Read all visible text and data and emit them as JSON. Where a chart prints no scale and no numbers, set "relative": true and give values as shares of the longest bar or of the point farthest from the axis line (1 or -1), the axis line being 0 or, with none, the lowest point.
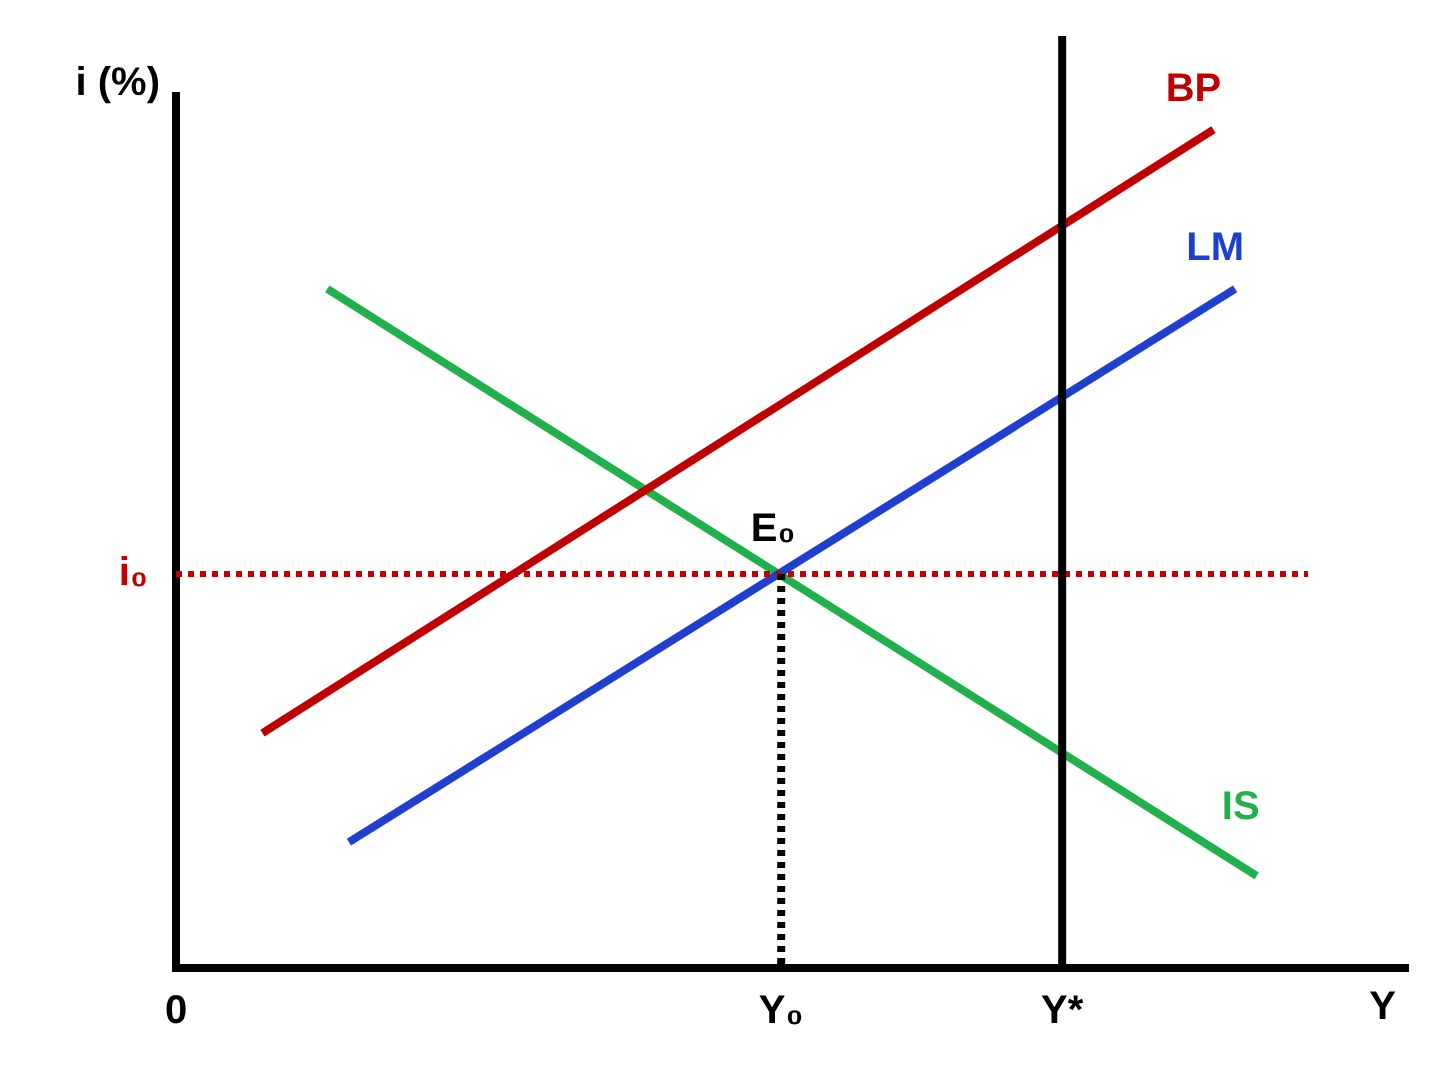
{
  "chart_data": {
    "type": "line",
    "relative": true,
    "ylabel": "i (%)",
    "xlabel": "Y",
    "categories": [
      "0",
      null,
      null,
      null,
      null,
      null,
      null,
      null,
      null,
      null,
      null,
      null,
      null,
      null,
      null,
      null,
      null,
      null,
      null,
      null,
      null,
      null,
      null,
      null,
      null,
      null,
      null,
      null,
      "Y₀",
      null,
      null,
      null,
      null,
      null,
      null,
      null,
      null,
      null,
      null,
      null,
      null,
      "Y*",
      null,
      null,
      null,
      null,
      null,
      null,
      null,
      null,
      null,
      null,
      null,
      null,
      null,
      null,
      null,
      null
    ],
    "series": [
      {
        "name": "BP",
        "color": "#c00000",
        "values": [
          null,
          null,
          null,
          null,
          0.28,
          null,
          null,
          null,
          null,
          null,
          null,
          null,
          null,
          null,
          null,
          null,
          null,
          null,
          null,
          null,
          null,
          null,
          null,
          null,
          null,
          null,
          null,
          null,
          null,
          null,
          null,
          null,
          null,
          null,
          null,
          null,
          null,
          null,
          null,
          null,
          null,
          null,
          null,
          null,
          null,
          null,
          null,
          null,
          1,
          null,
          null,
          null,
          null,
          null,
          null,
          null,
          null,
          null
        ]
      },
      {
        "name": "LM",
        "color": "#1f3fd0",
        "values": [
          null,
          null,
          null,
          null,
          null,
          null,
          null,
          null,
          0.15,
          null,
          null,
          null,
          null,
          null,
          null,
          null,
          null,
          null,
          null,
          null,
          null,
          null,
          null,
          null,
          null,
          null,
          null,
          null,
          null,
          null,
          null,
          null,
          null,
          null,
          null,
          null,
          null,
          null,
          null,
          null,
          null,
          null,
          null,
          null,
          null,
          null,
          null,
          null,
          null,
          0.81,
          null,
          null,
          null,
          null,
          null,
          null,
          null,
          null
        ]
      },
      {
        "name": "IS",
        "color": "#22b04c",
        "values": [
          null,
          null,
          null,
          null,
          null,
          null,
          null,
          0.81,
          null,
          null,
          null,
          null,
          null,
          null,
          null,
          null,
          null,
          null,
          null,
          null,
          null,
          null,
          null,
          null,
          null,
          null,
          null,
          null,
          null,
          null,
          null,
          null,
          null,
          null,
          null,
          null,
          null,
          null,
          null,
          null,
          null,
          null,
          null,
          null,
          null,
          null,
          null,
          null,
          null,
          null,
          0.11,
          null,
          null,
          null,
          null,
          null,
          null,
          null
        ]
      }
    ],
    "ref_lines": [
      {
        "axis": "y",
        "value": 0.47,
        "label": "i₀",
        "color": "#c00000",
        "line_style": "dotted"
      },
      {
        "axis": "x",
        "value": "Y₀",
        "label": null,
        "color": "#000000",
        "line_style": "dotted"
      },
      {
        "axis": "x",
        "value": "Y*",
        "label": null,
        "color": "#000000",
        "line_style": "solid"
      }
    ],
    "annotations": [
      {
        "text": "E₀",
        "x": "Y₀",
        "y": 0.47
      }
    ],
    "grid": false,
    "legend": false,
    "marker": "none",
    "line_style": "solid"
  }
}
